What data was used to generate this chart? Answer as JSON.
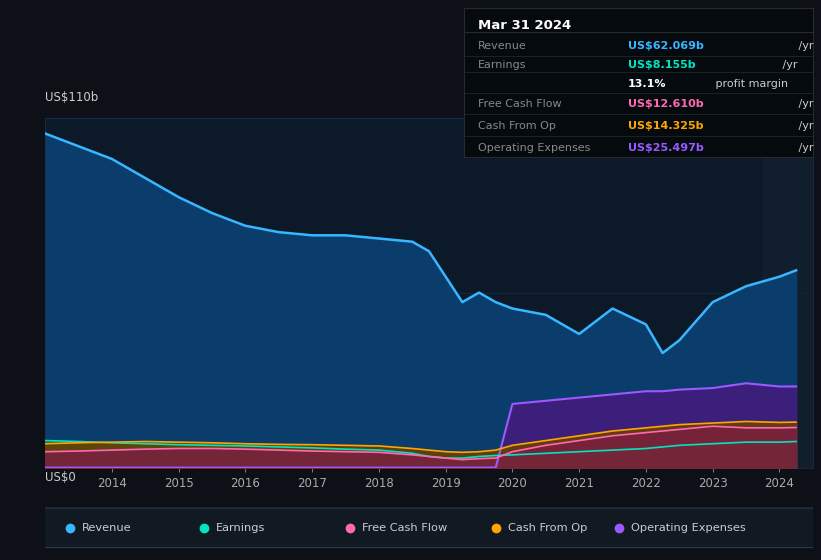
{
  "bg_color": "#0d1117",
  "chart_bg": "#0b1929",
  "grid_color": "#1e3050",
  "title_box": {
    "date": "Mar 31 2024",
    "rows": [
      {
        "label": "Revenue",
        "value": "US$62.069b",
        "suffix": " /yr",
        "value_color": "#38b6ff"
      },
      {
        "label": "Earnings",
        "value": "US$8.155b",
        "suffix": " /yr",
        "value_color": "#00e5c0"
      },
      {
        "label": "",
        "value": "13.1%",
        "suffix": " profit margin",
        "value_color": "#ffffff"
      },
      {
        "label": "Free Cash Flow",
        "value": "US$12.610b",
        "suffix": " /yr",
        "value_color": "#ff69b4"
      },
      {
        "label": "Cash From Op",
        "value": "US$14.325b",
        "suffix": " /yr",
        "value_color": "#ffa500"
      },
      {
        "label": "Operating Expenses",
        "value": "US$25.497b",
        "suffix": " /yr",
        "value_color": "#9b59ff"
      }
    ]
  },
  "ylim": [
    0,
    110
  ],
  "ylabel_top": "US$110b",
  "ylabel_bot": "US$0",
  "years": [
    2013.0,
    2013.5,
    2014.0,
    2014.5,
    2015.0,
    2015.5,
    2016.0,
    2016.5,
    2017.0,
    2017.5,
    2018.0,
    2018.5,
    2018.75,
    2019.0,
    2019.25,
    2019.5,
    2019.75,
    2020.0,
    2020.5,
    2021.0,
    2021.5,
    2022.0,
    2022.25,
    2022.5,
    2023.0,
    2023.5,
    2024.0,
    2024.25
  ],
  "revenue": [
    105,
    101,
    97,
    91,
    85,
    80,
    76,
    74,
    73,
    73,
    72,
    71,
    68,
    60,
    52,
    55,
    52,
    50,
    48,
    42,
    50,
    45,
    36,
    40,
    52,
    57,
    60,
    62
  ],
  "earnings": [
    8.5,
    8.2,
    7.8,
    7.5,
    7.2,
    7.0,
    6.8,
    6.5,
    6.2,
    5.8,
    5.5,
    4.5,
    3.5,
    3.0,
    3.0,
    3.5,
    3.8,
    4.0,
    4.5,
    5.0,
    5.5,
    6.0,
    6.5,
    7.0,
    7.5,
    8.0,
    8.0,
    8.2
  ],
  "free_cash_flow": [
    5.0,
    5.2,
    5.5,
    5.8,
    6.0,
    6.0,
    5.8,
    5.5,
    5.2,
    5.0,
    4.8,
    4.0,
    3.5,
    3.0,
    2.5,
    2.8,
    3.0,
    5.0,
    7.0,
    8.5,
    10.0,
    11.0,
    11.5,
    12.0,
    13.0,
    12.5,
    12.5,
    12.6
  ],
  "cash_from_op": [
    7.5,
    7.8,
    8.0,
    8.2,
    8.0,
    7.8,
    7.5,
    7.3,
    7.2,
    7.0,
    6.8,
    6.0,
    5.5,
    5.0,
    4.8,
    5.0,
    5.5,
    7.0,
    8.5,
    10.0,
    11.5,
    12.5,
    13.0,
    13.5,
    14.0,
    14.5,
    14.2,
    14.3
  ],
  "op_expenses": [
    0,
    0,
    0,
    0,
    0,
    0,
    0,
    0,
    0,
    0,
    0,
    0,
    0,
    0,
    0,
    0,
    0,
    20,
    21,
    22,
    23,
    24,
    24,
    24.5,
    25,
    26.5,
    25.5,
    25.5
  ],
  "revenue_color": "#38b6ff",
  "revenue_fill": "#0a3d6b",
  "earnings_color": "#00e5c0",
  "earnings_fill": "#1a5c50",
  "fcf_color": "#ff69b4",
  "fcf_fill": "#7a2040",
  "cfop_color": "#ffa500",
  "cfop_fill": "#6b4000",
  "opex_color": "#9b59ff",
  "opex_fill": "#3b1f7a",
  "legend_items": [
    {
      "label": "Revenue",
      "color": "#38b6ff"
    },
    {
      "label": "Earnings",
      "color": "#00e5c0"
    },
    {
      "label": "Free Cash Flow",
      "color": "#ff69b4"
    },
    {
      "label": "Cash From Op",
      "color": "#ffa500"
    },
    {
      "label": "Operating Expenses",
      "color": "#9b59ff"
    }
  ]
}
